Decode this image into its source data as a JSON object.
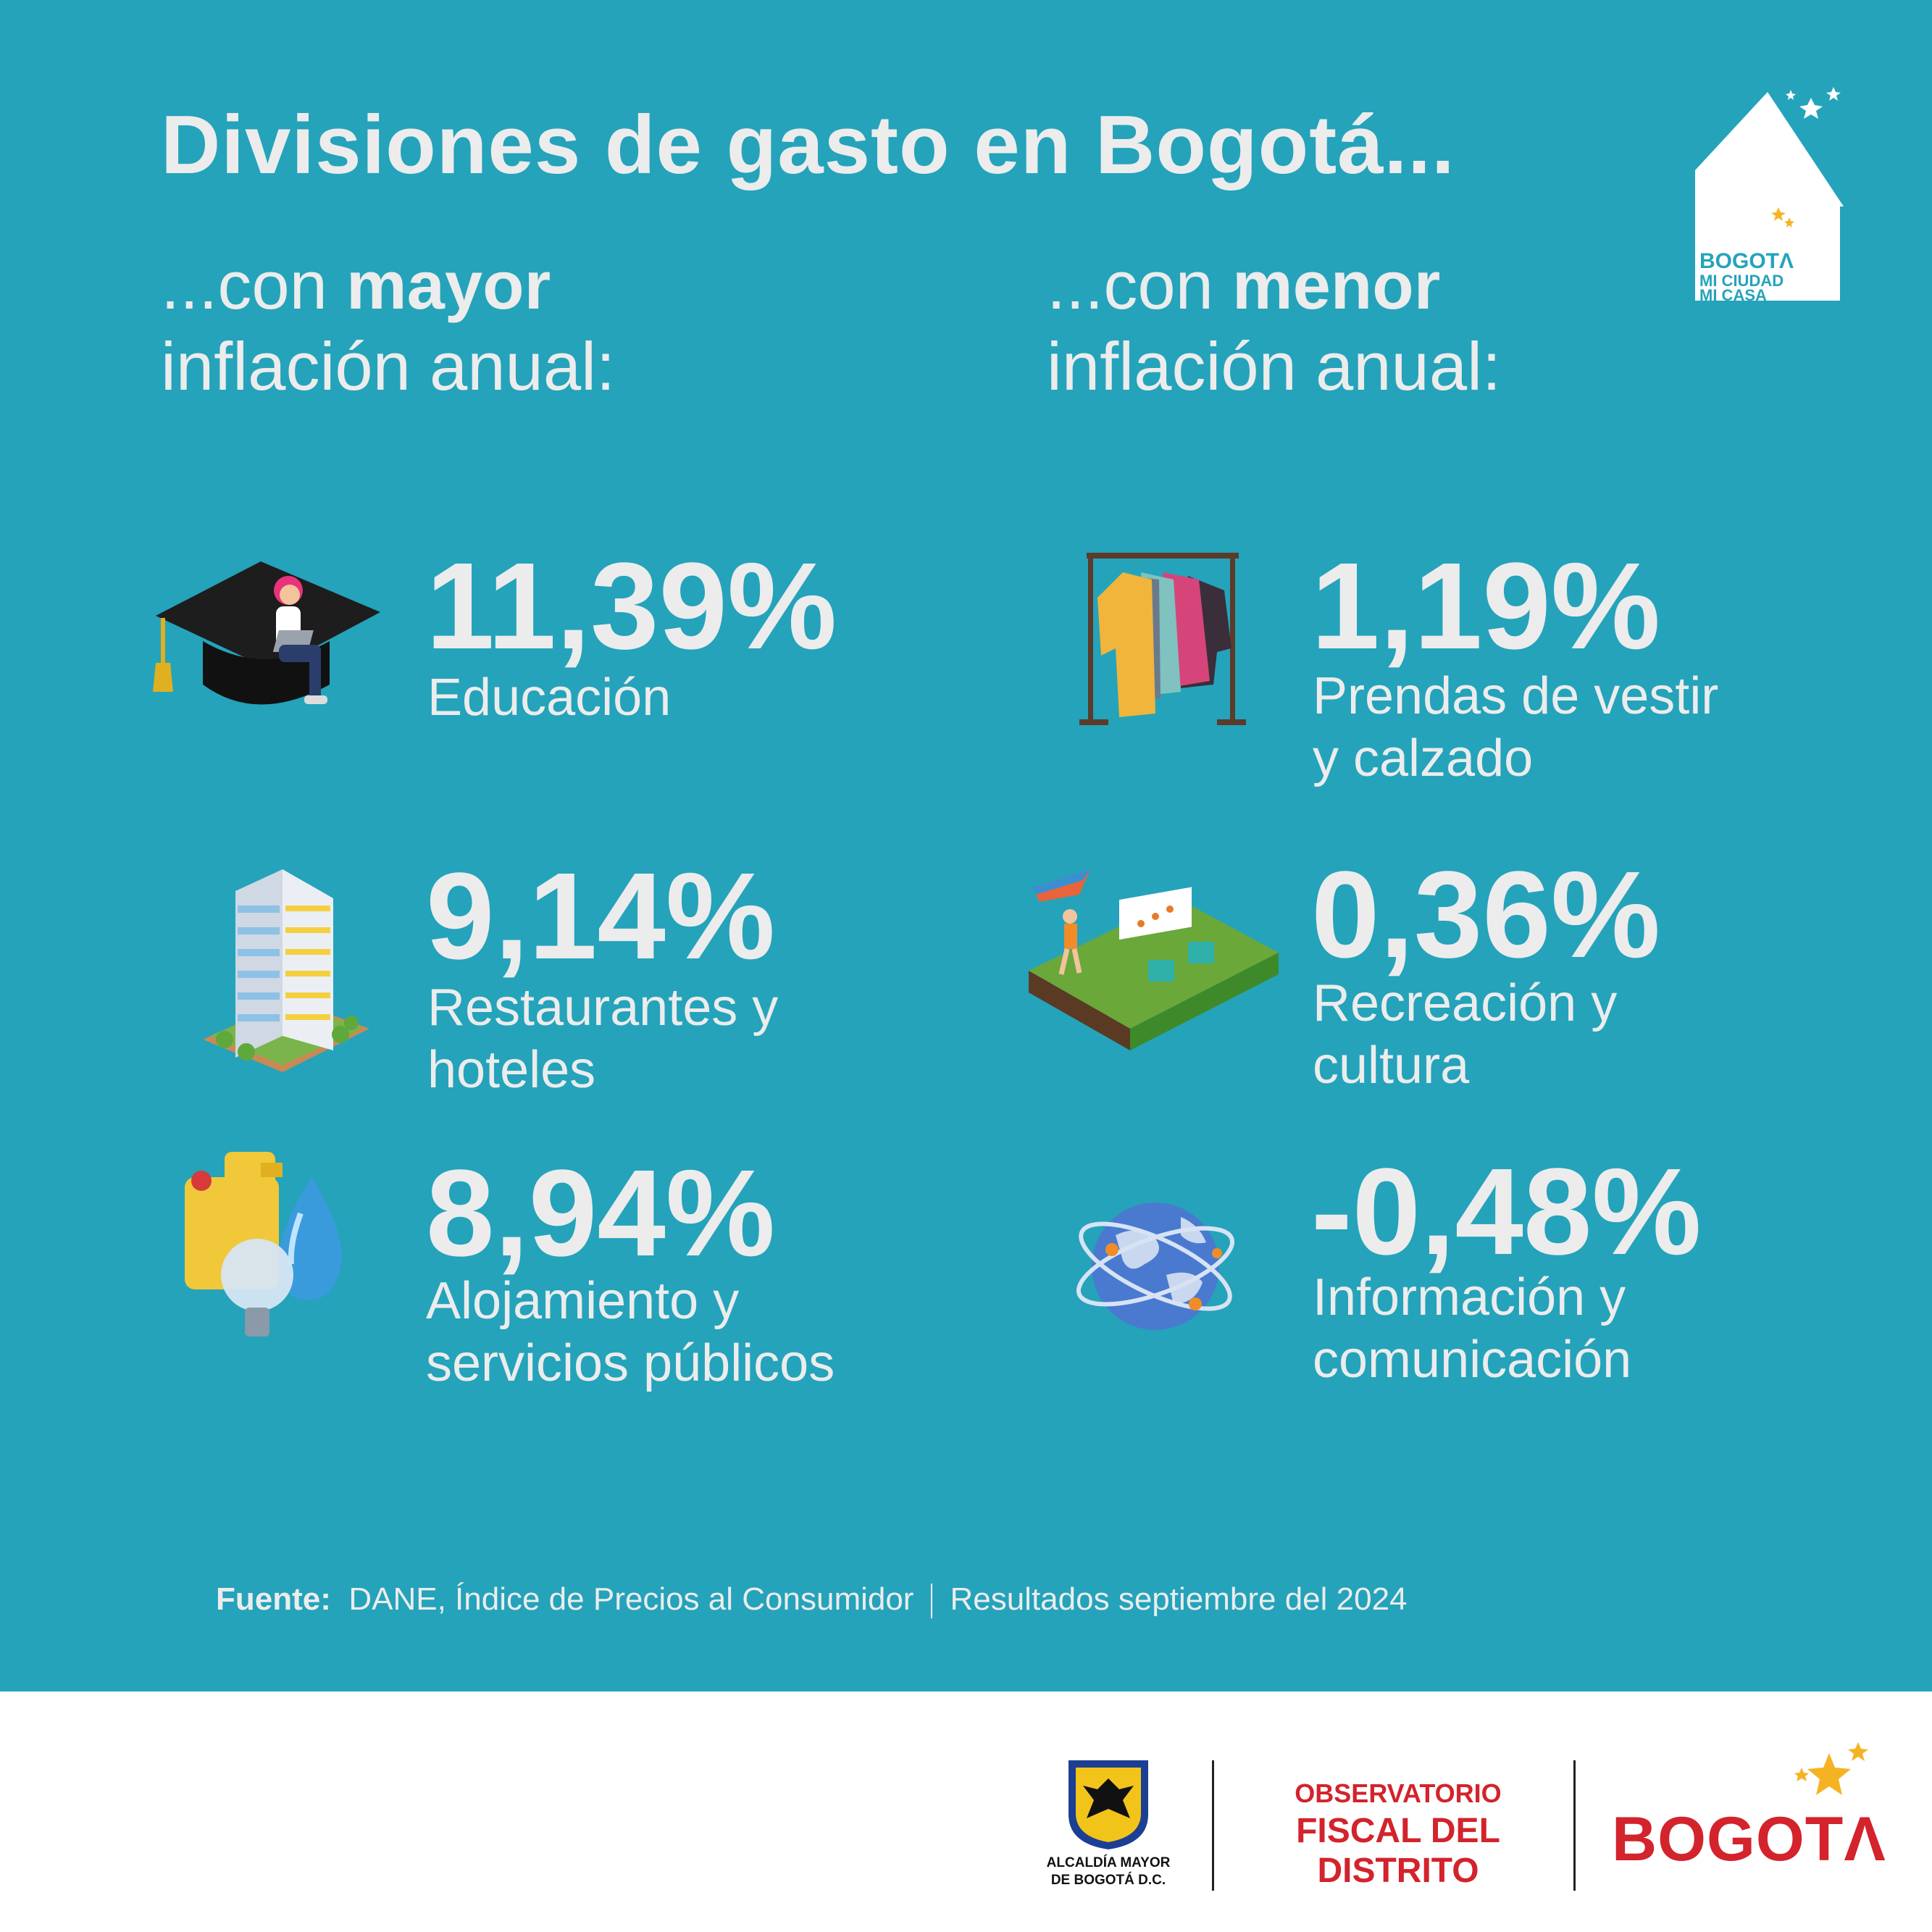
{
  "title": "Divisiones de gasto en Bogotá...",
  "left_heading": {
    "prefix": "...con ",
    "bold": "mayor",
    "line2": "inflación anual:"
  },
  "right_heading": {
    "prefix": "...con ",
    "bold": "menor",
    "line2": "inflación anual:"
  },
  "mayor": [
    {
      "value": "11,39%",
      "label1": "Educación",
      "label2": "",
      "icon": "graduation-cap-student-icon"
    },
    {
      "value": "9,14%",
      "label1": "Restaurantes y",
      "label2": "hoteles",
      "icon": "hotel-building-icon"
    },
    {
      "value": "8,94%",
      "label1": "Alojamiento y",
      "label2": "servicios públicos",
      "icon": "utilities-gas-water-light-icon"
    }
  ],
  "menor": [
    {
      "value": "1,19%",
      "label1": "Prendas de vestir",
      "label2": "y calzado",
      "icon": "clothes-rack-icon"
    },
    {
      "value": "0,36%",
      "label1": "Recreación y",
      "label2": "cultura",
      "icon": "park-recreation-icon"
    },
    {
      "value": "-0,48%",
      "label1": "Información y",
      "label2": "comunicación",
      "icon": "globe-network-icon"
    }
  ],
  "source": {
    "label": "Fuente:",
    "text": "DANE, Índice de Precios al Consumidor",
    "date": "Resultados septiembre del 2024"
  },
  "logo_house": {
    "line1": "BOGOTΛ",
    "line2": "MI CIUDAD",
    "line3": "MI CASA"
  },
  "footer": {
    "alcaldia": "ALCALDÍA MAYOR",
    "alcaldia2": "DE BOGOTÁ D.C.",
    "observatorio1": "OBSERVATORIO",
    "observatorio2": "FISCAL DEL DISTRITO",
    "bogota": "BOGOTΛ"
  },
  "colors": {
    "background": "#24a3bb",
    "text": "#ececec",
    "brand_red": "#d3232c",
    "star": "#f5b324"
  }
}
